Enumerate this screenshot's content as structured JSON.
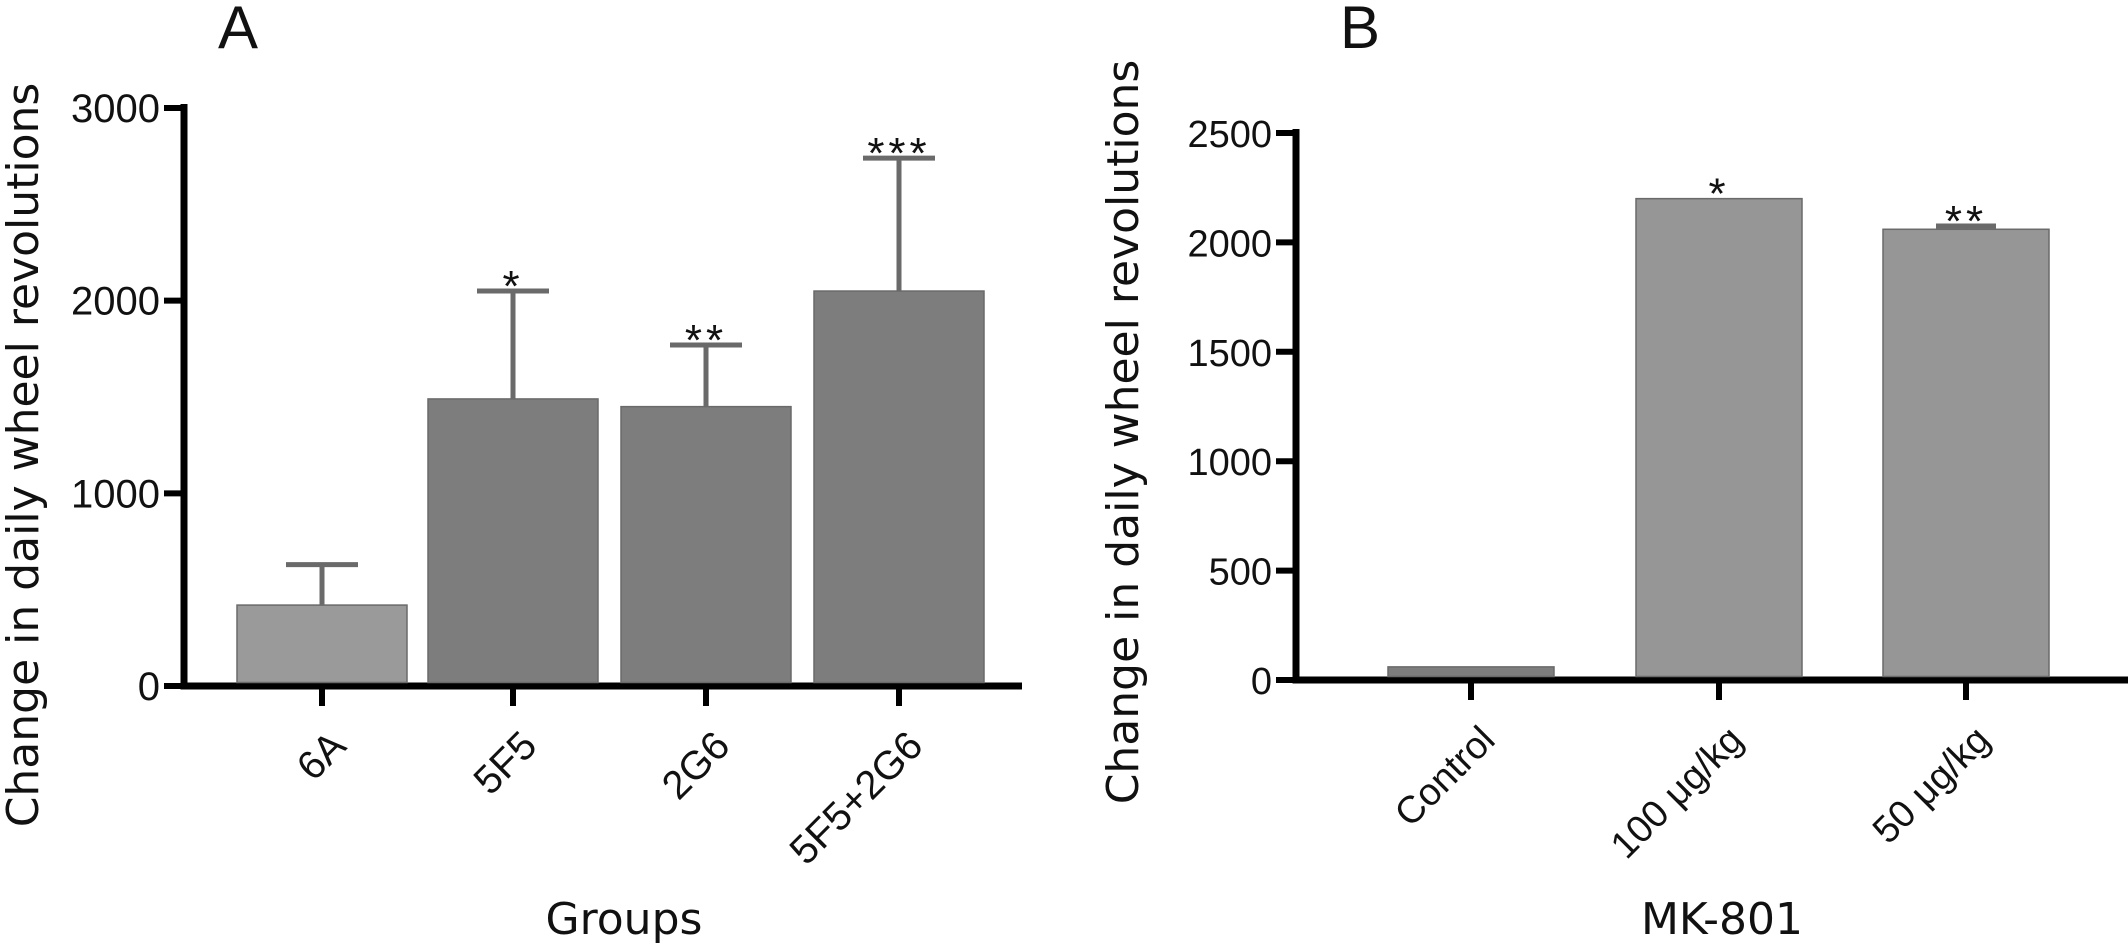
{
  "chart_data": [
    {
      "type": "bar",
      "panel": "A",
      "title": "",
      "xlabel": "Groups",
      "ylabel": "Change in daily wheel revolutions",
      "ylim": [
        0,
        3000
      ],
      "yticks": [
        "0",
        "1000",
        "2000",
        "3000"
      ],
      "categories": [
        "6A",
        "5F5",
        "2G6",
        "5F5+2G6"
      ],
      "values": [
        420,
        1490,
        1450,
        2050
      ],
      "error_upper": [
        630,
        2050,
        1770,
        2740
      ],
      "significance": [
        "",
        "*",
        "**",
        "***"
      ],
      "colors": [
        "#9a9a9a",
        "#7d7d7d",
        "#7d7d7d",
        "#7d7d7d"
      ],
      "grid": false,
      "legend": "none"
    },
    {
      "type": "bar",
      "panel": "B",
      "title": "",
      "xlabel": "MK-801",
      "ylabel": "Change in daily wheel revolutions",
      "ylim": [
        0,
        2500
      ],
      "yticks": [
        "0",
        "500",
        "1000",
        "1500",
        "2000",
        "2500"
      ],
      "categories": [
        "Control",
        "100 μg/kg",
        "50 μg/kg"
      ],
      "values": [
        60,
        2200,
        2060
      ],
      "error_upper": [
        60,
        2200,
        2075
      ],
      "significance": [
        "",
        "*",
        "**"
      ],
      "colors": [
        "#7d7d7d",
        "#969696",
        "#969696"
      ],
      "grid": false,
      "legend": "none"
    }
  ]
}
